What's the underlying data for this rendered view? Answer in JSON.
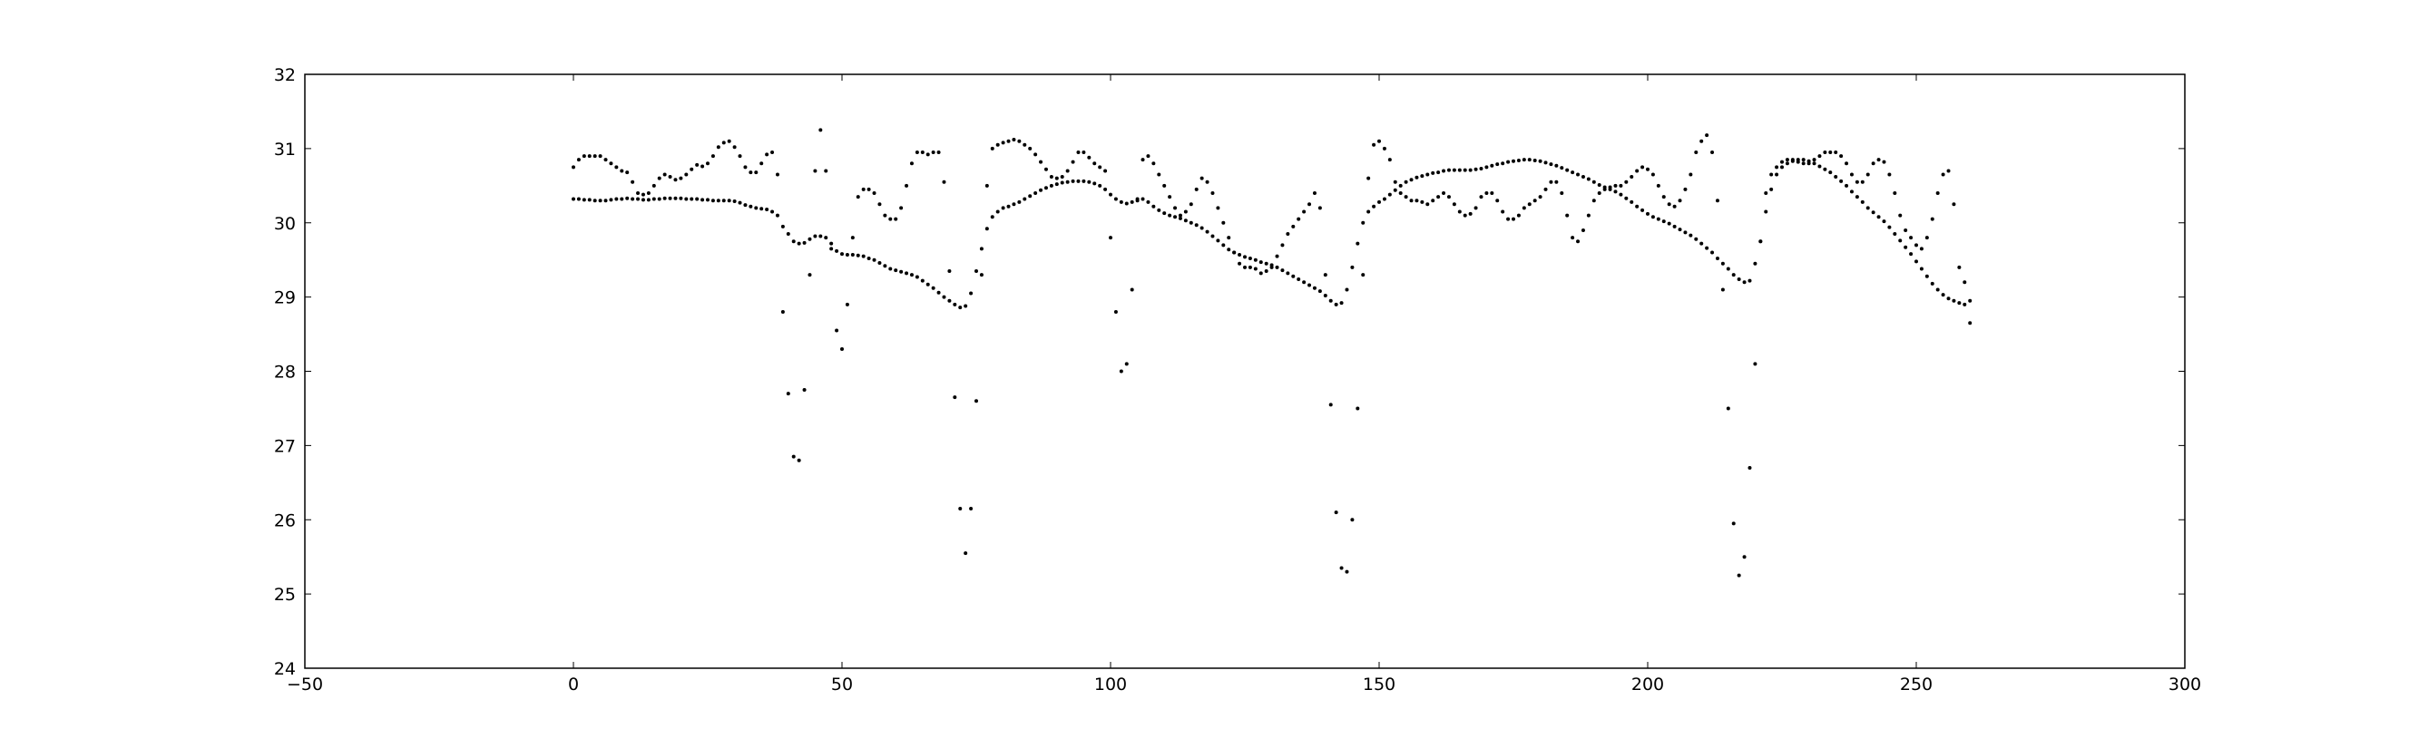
{
  "chart_data": {
    "type": "scatter",
    "xlim": [
      -50,
      300
    ],
    "xticks": [
      {
        "value": -50,
        "label": "−50"
      },
      0,
      50,
      100,
      150,
      200,
      250,
      300
    ],
    "ylim": [
      24,
      32
    ],
    "yticks": [
      24,
      25,
      26,
      27,
      28,
      29,
      30,
      31,
      32
    ],
    "grid": false,
    "x": [
      0,
      1,
      2,
      3,
      4,
      5,
      6,
      7,
      8,
      9,
      10,
      11,
      12,
      13,
      14,
      15,
      16,
      17,
      18,
      19,
      20,
      21,
      22,
      23,
      24,
      25,
      26,
      27,
      28,
      29,
      30,
      31,
      32,
      33,
      34,
      35,
      36,
      37,
      38,
      39,
      40,
      41,
      42,
      43,
      44,
      45,
      46,
      47,
      48,
      49,
      50,
      51,
      52,
      53,
      54,
      55,
      56,
      57,
      58,
      59,
      60,
      61,
      62,
      63,
      64,
      65,
      66,
      67,
      68,
      69,
      70,
      71,
      72,
      73,
      74,
      75,
      76,
      77,
      78,
      79,
      80,
      81,
      82,
      83,
      84,
      85,
      86,
      87,
      88,
      89,
      90,
      91,
      92,
      93,
      94,
      95,
      96,
      97,
      98,
      99,
      100,
      101,
      102,
      103,
      104,
      105,
      106,
      107,
      108,
      109,
      110,
      111,
      112,
      113,
      114,
      115,
      116,
      117,
      118,
      119,
      120,
      121,
      122,
      123,
      124,
      125,
      126,
      127,
      128,
      129,
      130,
      131,
      132,
      133,
      134,
      135,
      136,
      137,
      138,
      139,
      140,
      141,
      142,
      143,
      144,
      145,
      146,
      147,
      148,
      149,
      150,
      151,
      152,
      153,
      154,
      155,
      156,
      157,
      158,
      159,
      160,
      161,
      162,
      163,
      164,
      165,
      166,
      167,
      168,
      169,
      170,
      171,
      172,
      173,
      174,
      175,
      176,
      177,
      178,
      179,
      180,
      181,
      182,
      183,
      184,
      185,
      186,
      187,
      188,
      189,
      190,
      191,
      192,
      193,
      194,
      195,
      196,
      197,
      198,
      199,
      200,
      201,
      202,
      203,
      204,
      205,
      206,
      207,
      208,
      209,
      210,
      211,
      212,
      213,
      214,
      215,
      216,
      217,
      218,
      219,
      220,
      221,
      222,
      223,
      224,
      225,
      226,
      227,
      228,
      229,
      230,
      231,
      232,
      233,
      234,
      235,
      236,
      237,
      238,
      239,
      240,
      241,
      242,
      243,
      244,
      245,
      246,
      247,
      248,
      249,
      250,
      251,
      252,
      253,
      254,
      255,
      256,
      257,
      258,
      259,
      260
    ],
    "series": [
      {
        "color": "#000000",
        "values": [
          30.32,
          30.32,
          30.31,
          30.31,
          30.3,
          30.3,
          30.3,
          30.31,
          30.32,
          30.32,
          30.33,
          30.32,
          30.32,
          30.31,
          30.31,
          30.32,
          30.32,
          30.33,
          30.33,
          30.33,
          30.33,
          30.32,
          30.32,
          30.32,
          30.31,
          30.31,
          30.3,
          30.3,
          30.3,
          30.3,
          30.29,
          30.27,
          30.24,
          30.22,
          30.2,
          30.19,
          30.18,
          30.15,
          30.1,
          29.95,
          29.85,
          29.75,
          29.72,
          29.73,
          29.78,
          29.82,
          29.82,
          29.8,
          29.72,
          29.62,
          29.58,
          29.57,
          29.57,
          29.56,
          29.55,
          29.52,
          29.5,
          29.46,
          29.42,
          29.38,
          29.36,
          29.34,
          29.32,
          29.3,
          29.27,
          29.22,
          29.17,
          29.12,
          29.06,
          29.0,
          28.95,
          28.9,
          28.86,
          28.88,
          29.05,
          29.35,
          29.65,
          29.92,
          30.08,
          30.15,
          30.2,
          30.22,
          30.25,
          30.28,
          30.32,
          30.36,
          30.4,
          30.44,
          30.47,
          30.5,
          30.52,
          30.54,
          30.55,
          30.56,
          30.56,
          30.56,
          30.55,
          30.53,
          30.5,
          30.45,
          30.38,
          30.32,
          30.28,
          30.26,
          30.28,
          30.32,
          30.32,
          30.28,
          30.22,
          30.17,
          30.13,
          30.1,
          30.08,
          30.06,
          30.03,
          30.0,
          29.97,
          29.93,
          29.88,
          29.82,
          29.76,
          29.7,
          29.64,
          29.6,
          29.57,
          29.54,
          29.52,
          29.5,
          29.47,
          29.45,
          29.43,
          29.4,
          29.36,
          29.32,
          29.28,
          29.24,
          29.2,
          29.16,
          29.12,
          29.08,
          29.02,
          28.95,
          28.9,
          28.92,
          29.1,
          29.4,
          29.72,
          30.0,
          30.15,
          30.22,
          30.28,
          30.32,
          30.38,
          30.44,
          30.5,
          30.55,
          30.58,
          30.61,
          30.63,
          30.65,
          30.67,
          30.68,
          30.7,
          30.71,
          30.71,
          30.71,
          30.71,
          30.71,
          30.72,
          30.73,
          30.75,
          30.77,
          30.79,
          30.8,
          30.82,
          30.83,
          30.84,
          30.85,
          30.85,
          30.84,
          30.83,
          30.81,
          30.79,
          30.77,
          30.74,
          30.71,
          30.68,
          30.65,
          30.62,
          30.59,
          30.55,
          30.51,
          30.48,
          30.45,
          30.42,
          30.38,
          30.33,
          30.28,
          30.22,
          30.17,
          30.12,
          30.08,
          30.05,
          30.02,
          29.99,
          29.95,
          29.91,
          29.87,
          29.83,
          29.78,
          29.72,
          29.66,
          29.6,
          29.52,
          29.45,
          29.38,
          29.3,
          29.24,
          29.2,
          29.22,
          29.45,
          29.75,
          30.15,
          30.45,
          30.65,
          30.75,
          30.8,
          30.83,
          30.85,
          30.85,
          30.83,
          30.8,
          30.76,
          30.72,
          30.68,
          30.62,
          30.56,
          30.5,
          30.42,
          30.35,
          30.28,
          30.2,
          30.14,
          30.08,
          30.02,
          29.94,
          29.85,
          29.76,
          29.67,
          29.58,
          29.48,
          29.38,
          29.28,
          29.18,
          29.1,
          29.03,
          28.98,
          28.95,
          28.92,
          28.9,
          28.95
        ]
      },
      {
        "color": "#000000",
        "values": [
          30.75,
          30.85,
          30.9,
          30.9,
          30.9,
          30.9,
          30.85,
          30.8,
          30.75,
          30.7,
          30.68,
          30.55,
          30.4,
          30.38,
          30.4,
          30.5,
          30.6,
          30.65,
          30.62,
          30.58,
          30.6,
          30.65,
          30.72,
          30.78,
          30.76,
          30.8,
          30.9,
          31.02,
          31.08,
          31.1,
          31.02,
          30.9,
          30.75,
          30.68,
          30.68,
          30.8,
          30.92,
          30.95,
          30.65,
          28.8,
          27.7,
          26.85,
          26.8,
          27.75,
          29.3,
          30.7,
          31.25,
          30.7,
          29.65,
          28.55,
          28.3,
          28.9,
          29.8,
          30.35,
          30.45,
          30.45,
          30.4,
          30.25,
          30.1,
          30.05,
          30.05,
          30.2,
          30.5,
          30.8,
          30.95,
          30.95,
          30.92,
          30.95,
          30.95,
          30.55,
          29.35,
          27.65,
          26.15,
          25.55,
          26.15,
          27.6,
          29.3,
          30.5,
          31.0,
          31.05,
          31.08,
          31.1,
          31.12,
          31.1,
          31.05,
          31.0,
          30.92,
          30.82,
          30.72,
          30.62,
          30.6,
          30.62,
          30.7,
          30.82,
          30.95,
          30.95,
          30.88,
          30.8,
          30.75,
          30.7,
          29.8,
          28.8,
          28.0,
          28.1,
          29.1,
          30.3,
          30.85,
          30.9,
          30.8,
          30.65,
          30.5,
          30.35,
          30.2,
          30.1,
          30.15,
          30.25,
          30.45,
          30.6,
          30.55,
          30.4,
          30.2,
          30.0,
          29.8,
          29.6,
          29.45,
          29.4,
          29.4,
          29.38,
          29.32,
          29.35,
          29.4,
          29.55,
          29.7,
          29.85,
          29.95,
          30.05,
          30.15,
          30.25,
          30.4,
          30.2,
          29.3,
          27.55,
          26.1,
          25.35,
          25.3,
          26.0,
          27.5,
          29.3,
          30.6,
          31.05,
          31.1,
          31.0,
          30.85,
          30.55,
          30.4,
          30.35,
          30.3,
          30.3,
          30.28,
          30.25,
          30.3,
          30.35,
          30.4,
          30.35,
          30.25,
          30.15,
          30.1,
          30.12,
          30.2,
          30.35,
          30.4,
          30.4,
          30.3,
          30.15,
          30.05,
          30.05,
          30.1,
          30.2,
          30.25,
          30.3,
          30.35,
          30.45,
          30.55,
          30.55,
          30.4,
          30.1,
          29.8,
          29.75,
          29.9,
          30.1,
          30.3,
          30.4,
          30.45,
          30.48,
          30.5,
          30.5,
          30.55,
          30.62,
          30.7,
          30.75,
          30.72,
          30.65,
          30.5,
          30.35,
          30.25,
          30.22,
          30.3,
          30.45,
          30.65,
          30.95,
          31.1,
          31.18,
          30.95,
          30.3,
          29.1,
          27.5,
          25.95,
          25.25,
          25.5,
          26.7,
          28.1,
          29.75,
          30.4,
          30.65,
          30.75,
          30.82,
          30.85,
          30.85,
          30.82,
          30.8,
          30.8,
          30.85,
          30.9,
          30.95,
          30.95,
          30.95,
          30.9,
          30.8,
          30.65,
          30.55,
          30.55,
          30.65,
          30.8,
          30.85,
          30.82,
          30.65,
          30.4,
          30.1,
          29.9,
          29.8,
          29.7,
          29.65,
          29.8,
          30.05,
          30.4,
          30.65,
          30.7,
          30.25,
          29.4,
          29.2,
          28.65
        ]
      }
    ]
  }
}
